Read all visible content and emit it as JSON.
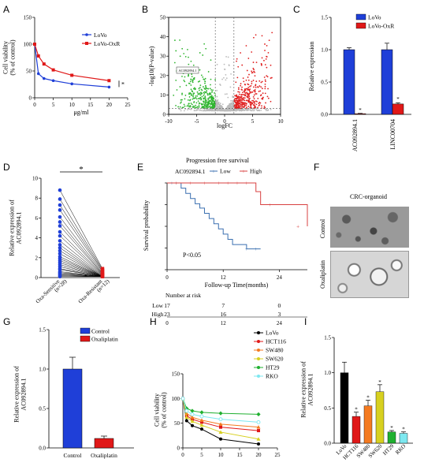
{
  "panel_labels": {
    "A": "A",
    "B": "B",
    "C": "C",
    "D": "D",
    "E": "E",
    "F": "F",
    "G": "G",
    "H": "H",
    "I": "I"
  },
  "colors": {
    "blue": "#1f3fd8",
    "red": "#e01818",
    "volcano_green": "#2fb52f",
    "volcano_red": "#e02020",
    "volcano_gray": "#bbbbbb",
    "km_blue": "#3a6fb0",
    "km_red": "#d84040",
    "orange": "#f47a20",
    "yellow": "#d7d020",
    "green": "#20b030",
    "cyan": "#7ee8f0",
    "black": "#000000"
  },
  "chart_data": [
    {
      "panel": "A",
      "type": "line",
      "ylabel": "Cell viability\n(% of control)",
      "xlabel": "μg/ml",
      "xlim": [
        0,
        25
      ],
      "ylim": [
        0,
        150
      ],
      "xticks": [
        "0",
        "5",
        "10",
        "15",
        "20",
        "25"
      ],
      "yticks": [
        "0",
        "50",
        "100",
        "150"
      ],
      "x": [
        0,
        1,
        2.5,
        5,
        10,
        20
      ],
      "series": [
        {
          "name": "LoVo",
          "values": [
            100,
            45,
            36,
            32,
            26,
            20
          ]
        },
        {
          "name": "LoVo-OxR",
          "values": [
            100,
            78,
            63,
            52,
            42,
            32
          ]
        }
      ],
      "annotation": "*"
    },
    {
      "panel": "B",
      "type": "scatter",
      "xlabel": "logFC",
      "ylabel": "-log10(P-value)",
      "xlim": [
        -12,
        12
      ],
      "ylim": [
        -2,
        52
      ],
      "xticks": [
        "-10",
        "-5",
        "0",
        "5",
        "10"
      ],
      "yticks": [
        "0",
        "10",
        "20",
        "30",
        "40",
        "50"
      ],
      "fc_threshold": [
        -2,
        2
      ],
      "p_threshold": 1.3,
      "highlight_label": "AC092894.1",
      "highlight_point": [
        -4.5,
        8.5
      ]
    },
    {
      "panel": "C",
      "type": "bar",
      "ylabel": "Relative expression",
      "ylim": [
        0,
        1.5
      ],
      "yticks": [
        "0.0",
        "0.5",
        "1.0",
        "1.5"
      ],
      "categories": [
        "AC092894.1",
        "LINC00704"
      ],
      "series": [
        {
          "name": "LoVo",
          "values": [
            1.0,
            1.0
          ],
          "errors": [
            0.03,
            0.1
          ]
        },
        {
          "name": "LoVo-OxR",
          "values": [
            0.01,
            0.16
          ],
          "errors": [
            0.005,
            0.02
          ]
        }
      ],
      "annotations": [
        "*",
        "*"
      ]
    },
    {
      "panel": "D",
      "type": "scatter",
      "ylabel": "Relative expression of\nAC092894.1",
      "ylim": [
        0,
        10
      ],
      "yticks": [
        "0",
        "2",
        "4",
        "6",
        "8",
        "10"
      ],
      "categories": [
        "Oxa-Sensitive\n(n=28)",
        "Oxa-Resistant\n(n=12)"
      ],
      "sensitive": [
        8.8,
        7.9,
        7.3,
        6.8,
        6.1,
        5.6,
        5.2,
        4.6,
        4.2,
        3.7,
        3.3,
        3.0,
        2.7,
        2.4,
        2.1,
        1.9,
        1.7,
        1.5,
        1.3,
        1.1,
        0.9,
        0.8,
        0.6,
        0.5,
        0.4,
        0.3,
        0.2,
        0.1
      ],
      "resistant": [
        0.9,
        0.8,
        0.7,
        0.6,
        0.5,
        0.4,
        0.35,
        0.3,
        0.25,
        0.2,
        0.15,
        0.1
      ],
      "annotation": "*"
    },
    {
      "panel": "E",
      "type": "line",
      "title": "Progression free survival",
      "legend_title": "AC092894.1",
      "legend": [
        "Low",
        "High"
      ],
      "ylabel": "Survival probability",
      "xlabel": "Follow-up Time(months)",
      "xlim": [
        0,
        30
      ],
      "ylim": [
        0,
        1
      ],
      "xticks": [
        "0",
        "12",
        "24"
      ],
      "yticks": [
        "0.00",
        "0.25",
        "0.50",
        "0.75",
        "1.00"
      ],
      "series": [
        {
          "name": "Low",
          "x": [
            0,
            3,
            4,
            5,
            6,
            7,
            8,
            9,
            10,
            11,
            12,
            13,
            14,
            17
          ],
          "y": [
            1.0,
            0.94,
            0.88,
            0.82,
            0.76,
            0.71,
            0.65,
            0.59,
            0.53,
            0.47,
            0.41,
            0.35,
            0.29,
            0.24
          ]
        },
        {
          "name": "High",
          "x": [
            0,
            19,
            20,
            24,
            30
          ],
          "y": [
            1.0,
            0.9,
            0.75,
            0.75,
            0.5
          ]
        }
      ],
      "pvalue_text": "P<0.05",
      "risk_table_title": "Number at risk",
      "risk_rows": [
        {
          "label": "Low",
          "values": [
            "17",
            "7",
            "0"
          ]
        },
        {
          "label": "High",
          "values": [
            "23",
            "16",
            "3"
          ]
        }
      ]
    },
    {
      "panel": "G",
      "type": "bar",
      "ylabel": "Relative expression of\nAC092894.1",
      "ylim": [
        0,
        1.5
      ],
      "yticks": [
        "0.0",
        "0.5",
        "1.0",
        "1.5"
      ],
      "categories": [
        "Control",
        "Oxaliplatin"
      ],
      "values": [
        1.0,
        0.12
      ],
      "errors": [
        0.15,
        0.03
      ],
      "legend": [
        "Control",
        "Oxaliplatin"
      ]
    },
    {
      "panel": "H",
      "type": "line",
      "ylabel": "Cell viability\n(% of control)",
      "xlim": [
        0,
        25
      ],
      "ylim": [
        0,
        150
      ],
      "xticks": [
        "0",
        "5",
        "10",
        "15",
        "20",
        "25"
      ],
      "yticks": [
        "0",
        "50",
        "100",
        "150"
      ],
      "x": [
        0,
        1,
        2.5,
        5,
        10,
        20
      ],
      "series": [
        {
          "name": "LoVo",
          "values": [
            100,
            55,
            45,
            38,
            18,
            8
          ]
        },
        {
          "name": "HCT116",
          "values": [
            100,
            65,
            58,
            52,
            42,
            35
          ]
        },
        {
          "name": "SW480",
          "values": [
            100,
            70,
            62,
            56,
            48,
            42
          ]
        },
        {
          "name": "SW620",
          "values": [
            100,
            62,
            54,
            46,
            32,
            18
          ]
        },
        {
          "name": "HT29",
          "values": [
            100,
            80,
            75,
            72,
            70,
            68
          ]
        },
        {
          "name": "RKO",
          "values": [
            100,
            75,
            68,
            64,
            58,
            52
          ]
        }
      ]
    },
    {
      "panel": "I",
      "type": "bar",
      "ylabel": "Relative expression of\nAC092894.1",
      "ylim": [
        0,
        1.5
      ],
      "yticks": [
        "0.0",
        "0.5",
        "1.0",
        "1.5"
      ],
      "categories": [
        "LoVo",
        "HCT116",
        "SW480",
        "SW620",
        "HT29",
        "RKO"
      ],
      "values": [
        1.0,
        0.38,
        0.53,
        0.73,
        0.16,
        0.14
      ],
      "errors": [
        0.15,
        0.06,
        0.08,
        0.1,
        0.02,
        0.02
      ],
      "annotations": [
        "",
        "*",
        "*",
        "*",
        "*",
        "*"
      ]
    }
  ],
  "panel_f": {
    "title": "CRC-organoid",
    "row_labels": [
      "Control",
      "Oxaliplatin"
    ]
  }
}
